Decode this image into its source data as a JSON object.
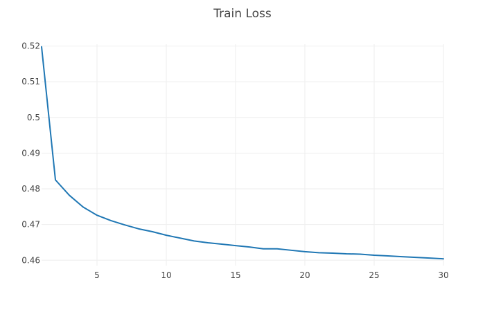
{
  "chart_data": {
    "type": "line",
    "title": "Train Loss",
    "xlabel": "",
    "ylabel": "",
    "xlim": [
      1,
      30
    ],
    "ylim": [
      0.4585,
      0.5205
    ],
    "x_ticks": [
      5,
      10,
      15,
      20,
      25,
      30
    ],
    "y_ticks": [
      0.46,
      0.47,
      0.48,
      0.49,
      0.5,
      0.51,
      0.52
    ],
    "grid": true,
    "legend": "none",
    "colors": {
      "line": "#1f77b4",
      "grid": "#eeeeee",
      "tick_text": "#444444"
    },
    "series": [
      {
        "x": [
          1,
          2,
          3,
          4,
          5,
          6,
          7,
          8,
          9,
          10,
          11,
          12,
          13,
          14,
          15,
          16,
          17,
          18,
          19,
          20,
          21,
          22,
          23,
          24,
          25,
          26,
          27,
          28,
          29,
          30
        ],
        "values": [
          0.5198,
          0.4825,
          0.4782,
          0.4749,
          0.4726,
          0.4711,
          0.4699,
          0.4688,
          0.468,
          0.467,
          0.4662,
          0.4654,
          0.4649,
          0.4645,
          0.4641,
          0.4637,
          0.4632,
          0.4632,
          0.4628,
          0.4624,
          0.4621,
          0.462,
          0.4618,
          0.4617,
          0.4614,
          0.4612,
          0.461,
          0.4608,
          0.4606,
          0.4604
        ]
      }
    ]
  }
}
